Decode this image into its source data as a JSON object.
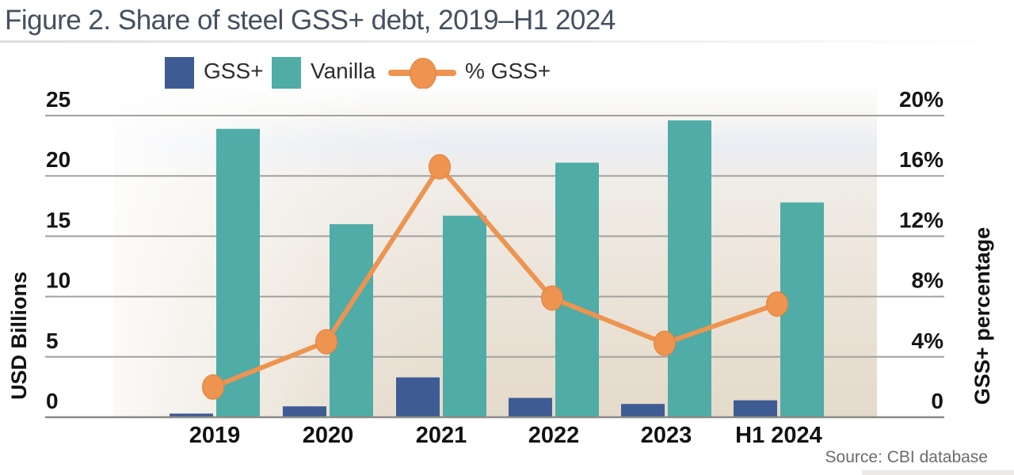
{
  "title": "Figure 2. Share of steel GSS+ debt, 2019–H1 2024",
  "source": "Source: CBI database",
  "legend": [
    {
      "label": "GSS+"
    },
    {
      "label": "Vanilla"
    },
    {
      "label": "% GSS+"
    }
  ],
  "colors": {
    "gss_blue": "#3E5B93",
    "vanilla_teal": "#4FACA7",
    "line_orange": "#ED9450",
    "dot_orange": "#EE9350",
    "dot_rim": "#E0823E",
    "title_text": "#43505F",
    "grid_grey": "#A3A19D",
    "axis_grey": "#8C8A86",
    "tick_text": "#141414"
  },
  "chart_data": {
    "type": "bar+line combo (dual axis)",
    "categories": [
      "2019",
      "2020",
      "2021",
      "2022",
      "2023",
      "H1 2024"
    ],
    "series": [
      {
        "name": "GSS+",
        "type": "bar",
        "axis": "left",
        "values": [
          0.3,
          0.9,
          3.3,
          1.6,
          1.1,
          1.4
        ]
      },
      {
        "name": "Vanilla",
        "type": "bar",
        "axis": "left",
        "values": [
          23.9,
          16.0,
          16.7,
          21.1,
          24.6,
          17.8
        ]
      },
      {
        "name": "% GSS+",
        "type": "line",
        "axis": "right",
        "values": [
          2.0,
          5.0,
          16.6,
          7.9,
          4.9,
          7.5
        ]
      }
    ],
    "left_axis": {
      "label": "USD Billions",
      "range": [
        0,
        25
      ],
      "ticks": [
        {
          "value": 25,
          "label": "25"
        },
        {
          "value": 20,
          "label": "20"
        },
        {
          "value": 15,
          "label": "15"
        },
        {
          "value": 10,
          "label": "10"
        },
        {
          "value": 5,
          "label": "5"
        },
        {
          "value": 0,
          "label": "0"
        }
      ]
    },
    "right_axis": {
      "label": "GSS+ percentage",
      "range": [
        0,
        20
      ],
      "ticks": [
        {
          "value": 20,
          "label": "20%"
        },
        {
          "value": 16,
          "label": "16%"
        },
        {
          "value": 12,
          "label": "12%"
        },
        {
          "value": 8,
          "label": "8%"
        },
        {
          "value": 4,
          "label": "4%"
        },
        {
          "value": 0,
          "label": "0"
        }
      ]
    },
    "grid": true,
    "legend_position": "top"
  }
}
